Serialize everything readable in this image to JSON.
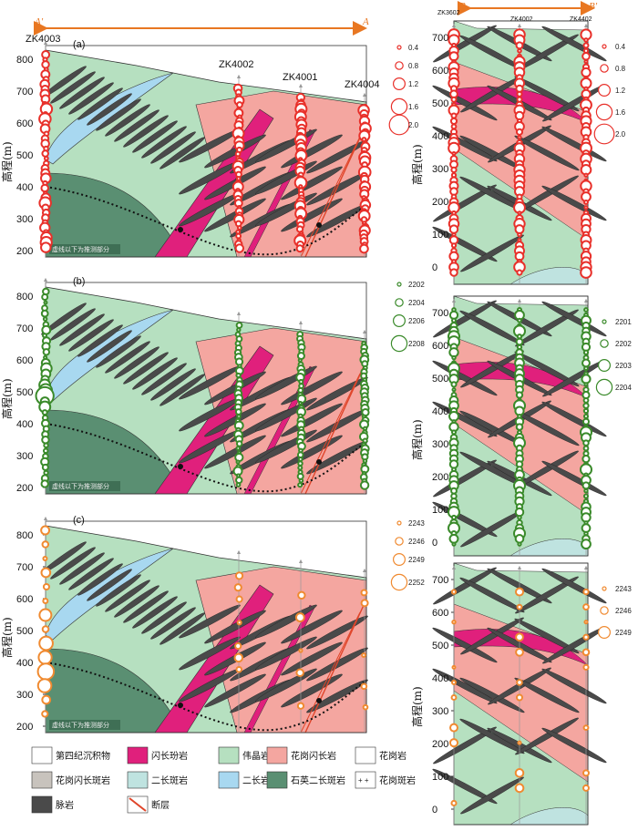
{
  "section_labels": {
    "a_prime": "A'",
    "a": "A",
    "b": "B",
    "b_prime": "B'"
  },
  "y_axis_title": "高程(m)",
  "panels_left": [
    {
      "label": "(a)",
      "ticks": [
        "800",
        "700",
        "600",
        "500",
        "400",
        "300",
        "200"
      ],
      "note": "虚线以下为推测部分"
    },
    {
      "label": "(b)",
      "ticks": [
        "800",
        "700",
        "600",
        "500",
        "400",
        "300",
        "200"
      ],
      "note": "虚线以下为推测部分"
    },
    {
      "label": "(c)",
      "ticks": [
        "800",
        "700",
        "600",
        "500",
        "400",
        "300",
        "200"
      ],
      "note": "虚线以下为推测部分"
    }
  ],
  "panels_right_ticks": [
    "700",
    "600",
    "500",
    "400",
    "300",
    "200",
    "100",
    "0"
  ],
  "holes_left": [
    "ZK4003",
    "ZK4002",
    "ZK4001",
    "ZK4004"
  ],
  "holes_right": [
    "ZK3602",
    "ZK4002",
    "ZK4402"
  ],
  "size_legends": {
    "a": [
      "0.4",
      "0.8",
      "1.2",
      "1.6",
      "2.0"
    ],
    "a_right": [
      "0.4",
      "0.8",
      "1.2",
      "1.6",
      "2.0"
    ],
    "b": [
      "2202",
      "2204",
      "2206",
      "2208"
    ],
    "b_right": [
      "2201",
      "2202",
      "2203",
      "2204"
    ],
    "c": [
      "2243",
      "2246",
      "2249",
      "2252"
    ],
    "c_right": [
      "2243",
      "2246",
      "2249"
    ]
  },
  "legend": [
    {
      "label": "第四纪沉积物",
      "color": "#ffffff"
    },
    {
      "label": "闪长玢岩",
      "color": "#e0207c"
    },
    {
      "label": "伟晶岩",
      "color": "#b6e0c0"
    },
    {
      "label": "花岗闪长岩",
      "color": "#f4a6a0"
    },
    {
      "label": "花岗岩",
      "color": "#ffffff"
    },
    {
      "label": "花岗闪长斑岩",
      "color": "#c8c3bd"
    },
    {
      "label": "二长斑岩",
      "color": "#bfe3e0"
    },
    {
      "label": "二长岩",
      "color": "#a8d8f0"
    },
    {
      "label": "石英二长斑岩",
      "color": "#5a8f72"
    },
    {
      "label": "花岗斑岩",
      "color": "#ffffff"
    },
    {
      "label": "脉岩",
      "color": "#4a4a4a"
    },
    {
      "label": "断层",
      "color": "#e0452a"
    }
  ],
  "colors": {
    "red": "#e8302a",
    "green": "#3a8a2a",
    "orange": "#f08a30",
    "arrow": "#e87722"
  }
}
